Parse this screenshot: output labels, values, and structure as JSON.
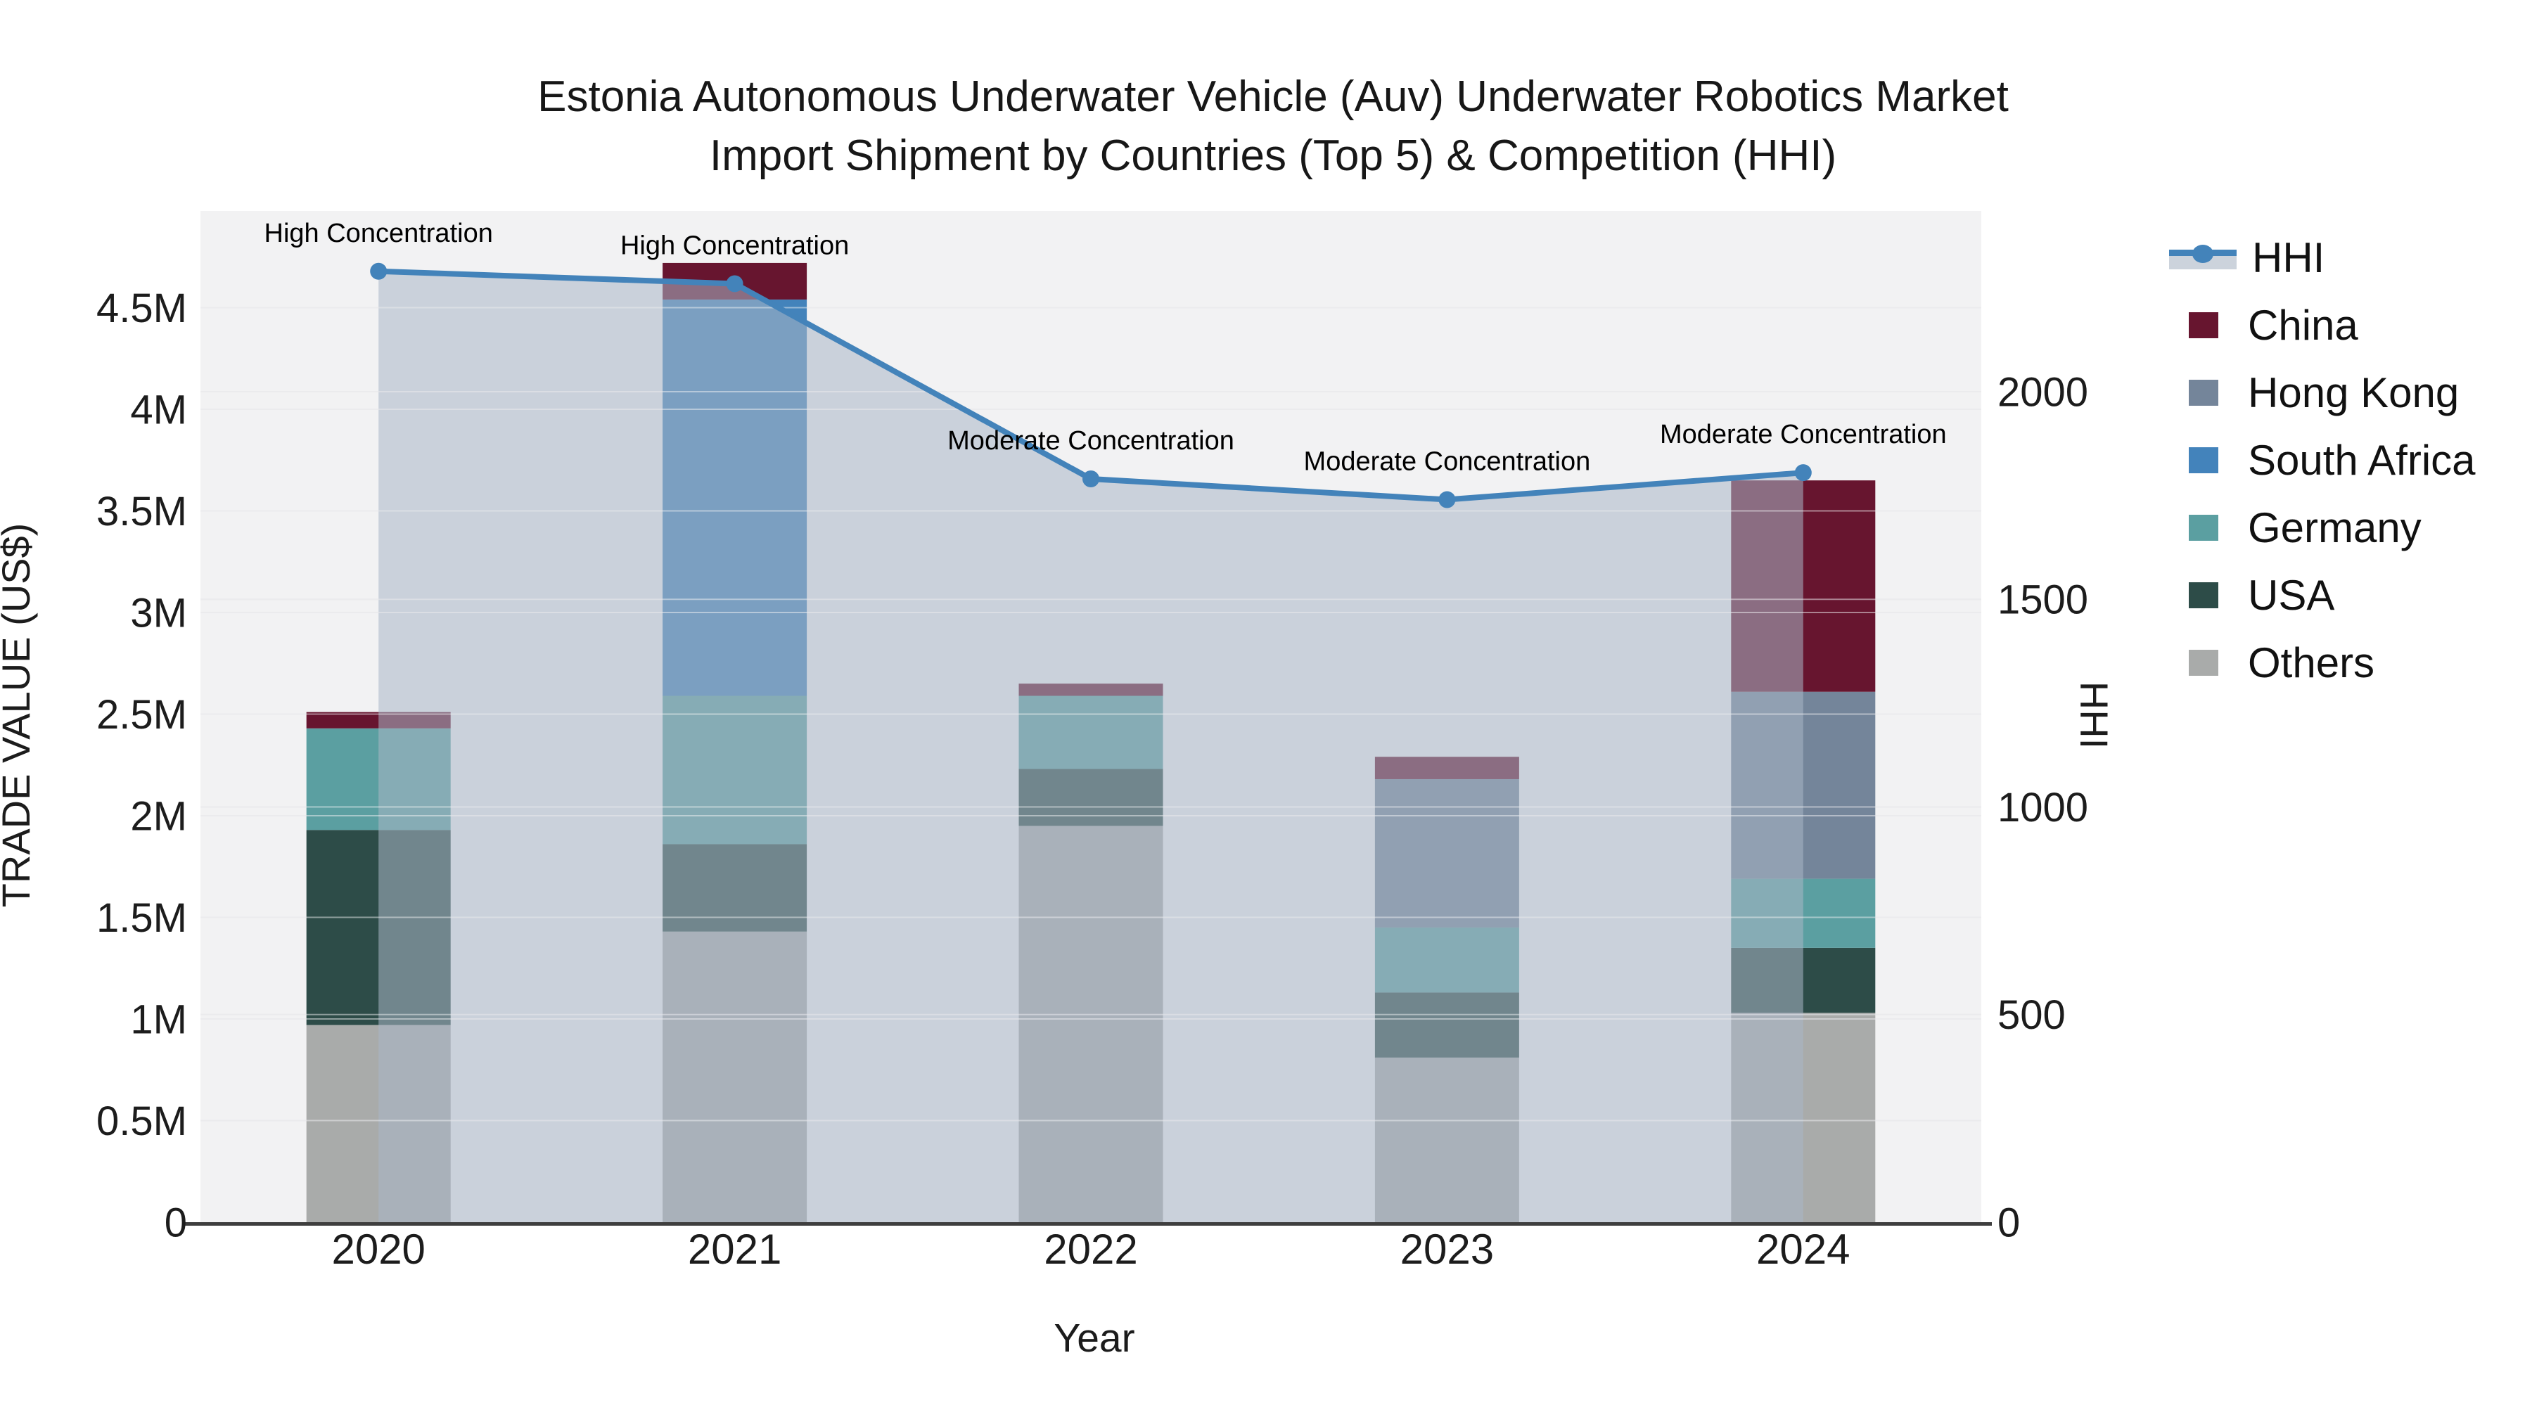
{
  "title": {
    "line1": "Estonia Autonomous Underwater Vehicle (Auv) Underwater Robotics Market",
    "line2": "Import Shipment by Countries (Top 5) & Competition (HHI)"
  },
  "chart_data": {
    "type": "bar",
    "stacked": true,
    "title": "Estonia Autonomous Underwater Vehicle (Auv) Underwater Robotics Market Import Shipment by Countries (Top 5) & Competition (HHI)",
    "categories": [
      "2020",
      "2021",
      "2022",
      "2023",
      "2024"
    ],
    "value_unit": "M US$",
    "series": [
      {
        "name": "Others",
        "color": "#a9abaa",
        "values": [
          0.97,
          1.43,
          1.95,
          0.81,
          1.03
        ]
      },
      {
        "name": "USA",
        "color": "#2d4c48",
        "values": [
          0.96,
          0.43,
          0.28,
          0.32,
          0.32
        ]
      },
      {
        "name": "Germany",
        "color": "#5b9fa1",
        "values": [
          0.5,
          0.73,
          0.36,
          0.32,
          0.34
        ]
      },
      {
        "name": "South Africa",
        "color": "#4383bb",
        "values": [
          0.0,
          1.95,
          0.0,
          0.0,
          0.0
        ]
      },
      {
        "name": "Hong Kong",
        "color": "#74859a",
        "values": [
          0.0,
          0.0,
          0.0,
          0.73,
          0.92
        ]
      },
      {
        "name": "China",
        "color": "#67152f",
        "values": [
          0.08,
          0.18,
          0.06,
          0.11,
          1.04
        ]
      }
    ],
    "line_series": {
      "name": "HHI",
      "color": "#4383ba",
      "fill_color": "rgba(170,182,198,0.55)",
      "values": [
        2290,
        2260,
        1790,
        1740,
        1805
      ],
      "annotations": [
        "High Concentration",
        "High Concentration",
        "Moderate Concentration",
        "Moderate Concentration",
        "Moderate Concentration"
      ]
    },
    "axes": {
      "x": {
        "title": "Year",
        "tick_labels": [
          "2020",
          "2021",
          "2022",
          "2023",
          "2024"
        ]
      },
      "left": {
        "title": "TRADE VALUE (US$)",
        "range": [
          0,
          5000000
        ],
        "ticks": [
          {
            "label": "0",
            "value": 0
          },
          {
            "label": "0.5M",
            "value": 0.5
          },
          {
            "label": "1M",
            "value": 1
          },
          {
            "label": "1.5M",
            "value": 1.5
          },
          {
            "label": "2M",
            "value": 2
          },
          {
            "label": "2.5M",
            "value": 2.5
          },
          {
            "label": "3M",
            "value": 3
          },
          {
            "label": "3.5M",
            "value": 3.5
          },
          {
            "label": "4M",
            "value": 4
          },
          {
            "label": "4.5M",
            "value": 4.5
          }
        ]
      },
      "right": {
        "title": "HHI",
        "range": [
          0,
          2460
        ],
        "ticks": [
          {
            "label": "0",
            "value": 0
          },
          {
            "label": "500",
            "value": 500
          },
          {
            "label": "1000",
            "value": 1000
          },
          {
            "label": "1500",
            "value": 1500
          },
          {
            "label": "2000",
            "value": 2000
          }
        ]
      }
    },
    "legend": {
      "position": "right",
      "entries": [
        "HHI",
        "China",
        "Hong Kong",
        "South Africa",
        "Germany",
        "USA",
        "Others"
      ]
    },
    "grid": true,
    "colors": {
      "plot_bg": "#f2f2f3",
      "grid": "#e4e4e7",
      "axis_line": "#3e3e3e",
      "text": "#1c1c1c"
    }
  }
}
